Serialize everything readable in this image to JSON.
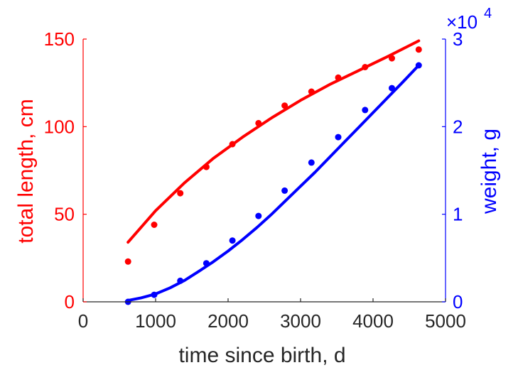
{
  "chart_data": {
    "type": "scatter",
    "xlabel": "time since birth, d",
    "xlim": [
      0,
      5000
    ],
    "xticks": [
      0,
      1000,
      2000,
      3000,
      4000,
      5000
    ],
    "left_axis": {
      "label": "total length, cm",
      "color": "#ff0000",
      "ylim": [
        0,
        150
      ],
      "ticks": [
        0,
        50,
        100,
        150
      ]
    },
    "right_axis": {
      "label": "weight, g",
      "color": "#0000ff",
      "ylim": [
        0,
        30000
      ],
      "ticks": [
        0,
        10000,
        20000,
        30000
      ],
      "tick_labels": [
        "0",
        "1",
        "2",
        "3"
      ],
      "exponent_label": "×10",
      "exponent_power": "4"
    },
    "grid": false,
    "series": [
      {
        "axis": "left",
        "color": "#ff0000",
        "marker": "dot",
        "x": [
          620,
          980,
          1340,
          1700,
          2060,
          2420,
          2780,
          3150,
          3520,
          3890,
          4260,
          4630
        ],
        "y": [
          23,
          44,
          62,
          77,
          90,
          102,
          112,
          120,
          128,
          134,
          139,
          144
        ]
      },
      {
        "axis": "left",
        "color": "#ff0000",
        "marker": "line",
        "x": [
          620,
          1000,
          1400,
          1800,
          2200,
          2600,
          3000,
          3400,
          3800,
          4200,
          4630
        ],
        "y": [
          34,
          52,
          68,
          82,
          94,
          105,
          115,
          124,
          132,
          140,
          149
        ]
      },
      {
        "axis": "right",
        "color": "#0000ff",
        "marker": "dot",
        "x": [
          620,
          980,
          1340,
          1700,
          2060,
          2420,
          2780,
          3150,
          3520,
          3890,
          4260,
          4630
        ],
        "y": [
          0,
          800,
          2400,
          4400,
          7000,
          9800,
          12700,
          15900,
          18800,
          21900,
          24400,
          27000
        ]
      },
      {
        "axis": "right",
        "color": "#0000ff",
        "marker": "line",
        "x": [
          620,
          800,
          1000,
          1200,
          1400,
          1600,
          1800,
          2000,
          2200,
          2400,
          2600,
          2800,
          3000,
          3200,
          3400,
          3600,
          3800,
          4000,
          4200,
          4400,
          4630
        ],
        "y": [
          150,
          450,
          900,
          1600,
          2450,
          3500,
          4600,
          5800,
          7100,
          8500,
          10000,
          11600,
          13200,
          14800,
          16500,
          18200,
          19900,
          21600,
          23300,
          25000,
          27000
        ]
      }
    ]
  }
}
